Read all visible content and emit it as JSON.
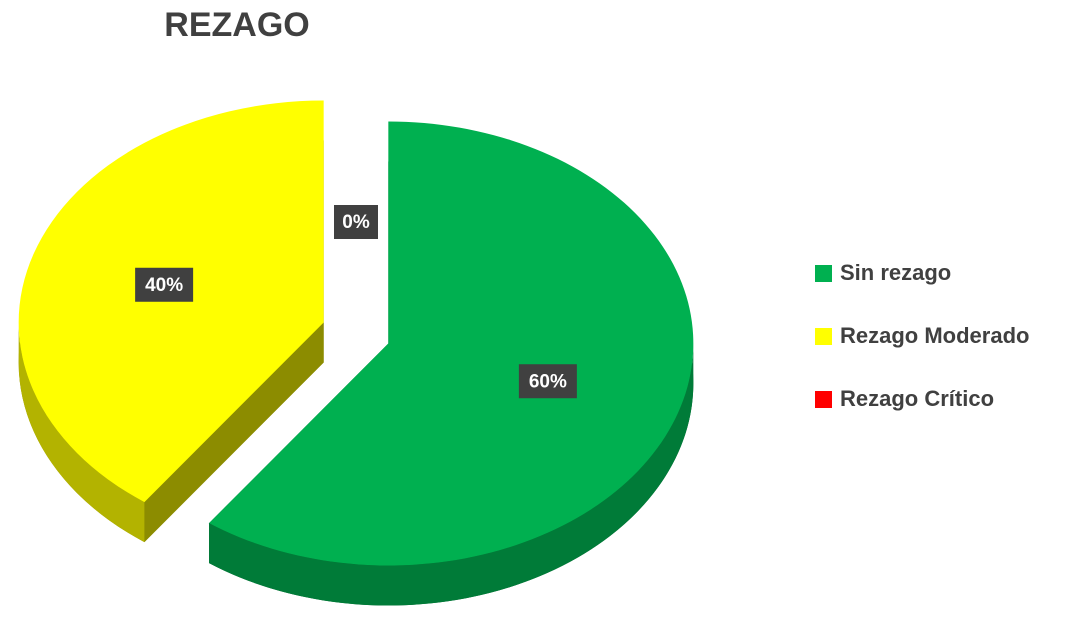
{
  "chart_data": {
    "type": "pie",
    "title": "REZAGO",
    "categories": [
      "Sin rezago",
      "Rezago Moderado",
      "Rezago Crítico"
    ],
    "values": [
      60,
      40,
      0
    ],
    "value_labels": [
      "60%",
      "40%",
      "0%"
    ],
    "colors": [
      "#00b050",
      "#ffff00",
      "#ff0000"
    ],
    "legend": "right"
  }
}
